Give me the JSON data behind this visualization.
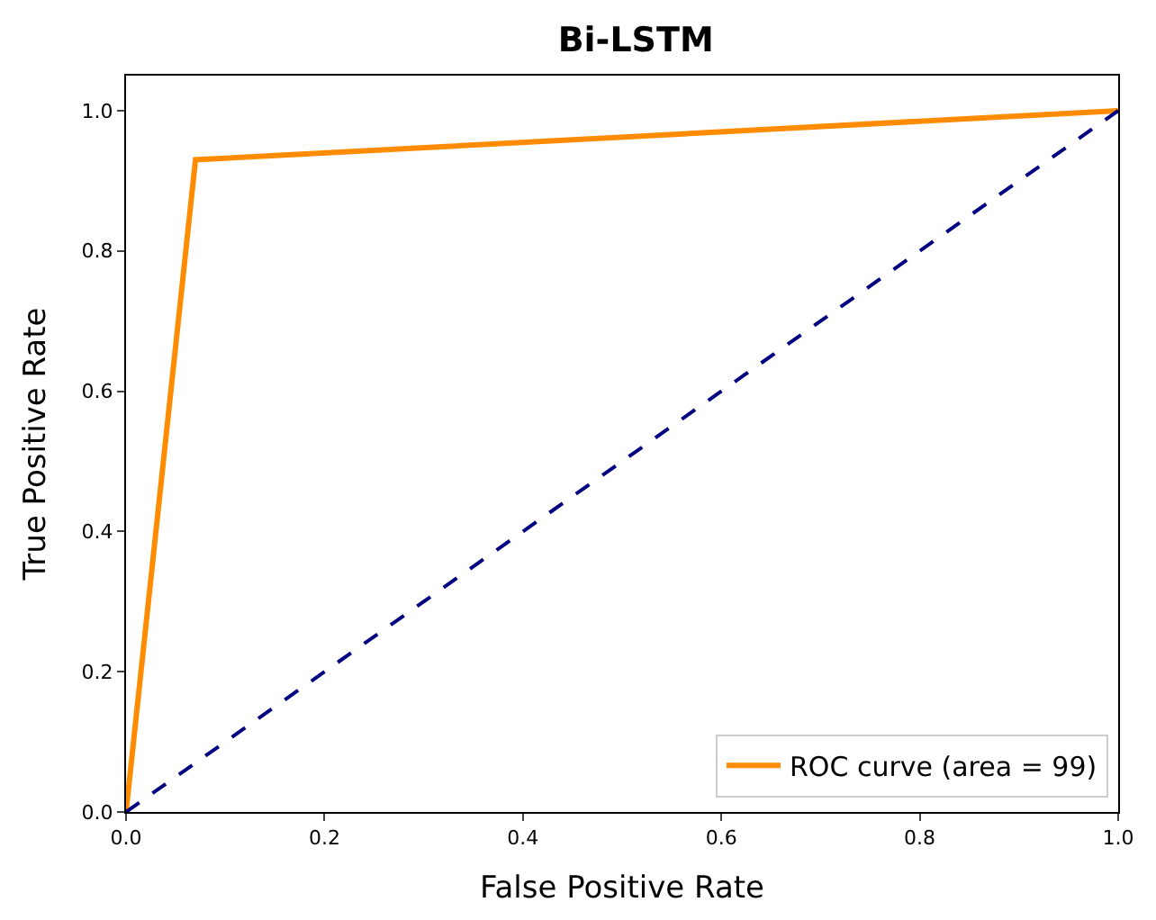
{
  "chart_data": {
    "type": "line",
    "title": "Bi-LSTM",
    "xlabel": "False Positive Rate",
    "ylabel": "True Positive Rate",
    "series": [
      {
        "name": "ROC curve (area = 99)",
        "color": "#ff8c00",
        "x": [
          0,
          0.07,
          1
        ],
        "values": [
          0,
          0.93,
          1
        ],
        "line_style": "solid"
      },
      {
        "color": "#000080",
        "x": [
          0,
          1
        ],
        "values": [
          0,
          1
        ],
        "line_style": "dashed"
      }
    ],
    "xlim": [
      0,
      1
    ],
    "ylim": [
      0,
      1.05
    ],
    "xticks": [
      {
        "value": 0,
        "label": "0.0"
      },
      {
        "value": 0.2,
        "label": "0.2"
      },
      {
        "value": 0.4,
        "label": "0.4"
      },
      {
        "value": 0.6,
        "label": "0.6"
      },
      {
        "value": 0.8,
        "label": "0.8"
      },
      {
        "value": 1,
        "label": "1.0"
      }
    ],
    "yticks": [
      {
        "value": 0,
        "label": "0.0"
      },
      {
        "value": 0.2,
        "label": "0.2"
      },
      {
        "value": 0.4,
        "label": "0.4"
      },
      {
        "value": 0.6,
        "label": "0.6"
      },
      {
        "value": 0.8,
        "label": "0.8"
      },
      {
        "value": 1,
        "label": "1.0"
      }
    ],
    "legend": "bottom right",
    "marker": "none"
  }
}
